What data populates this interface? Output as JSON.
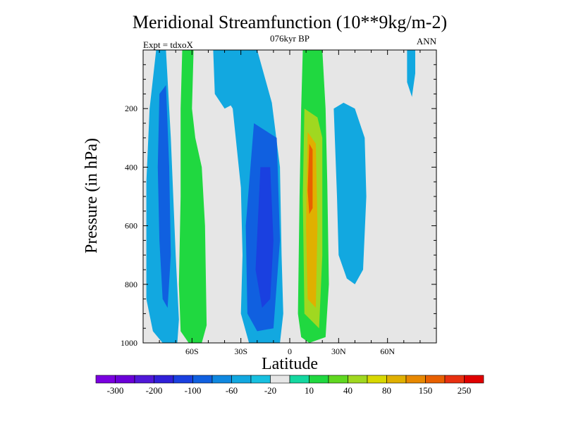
{
  "chart_data": {
    "type": "heatmap",
    "title": "Meridional Streamfunction (10**9kg/m-2)",
    "subtitle_center": "076kyr BP",
    "subtitle_left": "Expt = tdxoX",
    "subtitle_right": "ANN",
    "xlabel": "Latitude",
    "ylabel": "Pressure (in hPa)",
    "xlim": [
      -90,
      90
    ],
    "ylim": [
      0,
      1000
    ],
    "y_reversed": true,
    "x_ticks": [
      {
        "value": -60,
        "label": "60S"
      },
      {
        "value": -30,
        "label": "30S"
      },
      {
        "value": 0,
        "label": "0"
      },
      {
        "value": 30,
        "label": "30N"
      },
      {
        "value": 60,
        "label": "60N"
      }
    ],
    "y_ticks": [
      {
        "value": 200,
        "label": "200"
      },
      {
        "value": 400,
        "label": "400"
      },
      {
        "value": 600,
        "label": "600"
      },
      {
        "value": 800,
        "label": "800"
      },
      {
        "value": 1000,
        "label": "1000"
      }
    ],
    "background_color": "#e6e6e6",
    "colorbar": {
      "colors": [
        "#7a00e0",
        "#6a00d8",
        "#5018d8",
        "#3020d8",
        "#1a40e0",
        "#1060e0",
        "#0f88e0",
        "#12a8e0",
        "#18c0e0",
        "#e6e6e6",
        "#14d8a0",
        "#20d840",
        "#60d820",
        "#a0d820",
        "#d8d800",
        "#e0b000",
        "#e88800",
        "#e86000",
        "#e83010",
        "#e00000"
      ],
      "labels": [
        "-300",
        "-200",
        "-100",
        "-60",
        "-20",
        "10",
        "40",
        "80",
        "150",
        "250"
      ]
    },
    "contour_regions": [
      {
        "name": "sh-outer-cell-fill",
        "level": -20,
        "points": [
          [
            -88,
            450
          ],
          [
            -88,
            850
          ],
          [
            -84,
            960
          ],
          [
            -78,
            1000
          ],
          [
            -69,
            1000
          ],
          [
            -68,
            920
          ],
          [
            -70,
            700
          ],
          [
            -73,
            300
          ],
          [
            -76,
            0
          ],
          [
            -82,
            0
          ],
          [
            -86,
            200
          ]
        ]
      },
      {
        "name": "sh-outer-cell-core",
        "level": -60,
        "points": [
          [
            -80,
            150
          ],
          [
            -81,
            400
          ],
          [
            -80,
            650
          ],
          [
            -78,
            850
          ],
          [
            -75,
            880
          ],
          [
            -73,
            700
          ],
          [
            -74,
            400
          ],
          [
            -76,
            120
          ]
        ]
      },
      {
        "name": "sh-extratropical-cell",
        "level": 40,
        "points": [
          [
            -66,
            0
          ],
          [
            -67,
            200
          ],
          [
            -67,
            500
          ],
          [
            -68,
            800
          ],
          [
            -67,
            960
          ],
          [
            -62,
            1000
          ],
          [
            -54,
            1000
          ],
          [
            -51,
            940
          ],
          [
            -52,
            600
          ],
          [
            -54,
            400
          ],
          [
            -58,
            300
          ],
          [
            -60,
            200
          ],
          [
            -59,
            0
          ]
        ]
      },
      {
        "name": "sh-tropical-outer",
        "level": -20,
        "points": [
          [
            -44,
            0
          ],
          [
            -46,
            100
          ],
          [
            -35,
            200
          ],
          [
            -30,
            470
          ],
          [
            -29,
            700
          ],
          [
            -30,
            900
          ],
          [
            -25,
            1000
          ],
          [
            -6,
            1000
          ],
          [
            -4,
            900
          ],
          [
            -5,
            700
          ],
          [
            -6,
            400
          ],
          [
            -11,
            180
          ],
          [
            -20,
            0
          ]
        ]
      },
      {
        "name": "sh-tropical-mid",
        "level": -60,
        "points": [
          [
            -22,
            250
          ],
          [
            -27,
            600
          ],
          [
            -26,
            900
          ],
          [
            -20,
            960
          ],
          [
            -10,
            950
          ],
          [
            -6,
            650
          ],
          [
            -8,
            300
          ]
        ]
      },
      {
        "name": "sh-tropical-core",
        "level": -100,
        "points": [
          [
            -18,
            400
          ],
          [
            -21,
            750
          ],
          [
            -17,
            880
          ],
          [
            -12,
            850
          ],
          [
            -10,
            650
          ],
          [
            -12,
            400
          ]
        ]
      },
      {
        "name": "nh-tropical-outer",
        "level": 40,
        "points": [
          [
            8,
            0
          ],
          [
            7,
            200
          ],
          [
            6,
            500
          ],
          [
            5,
            900
          ],
          [
            7,
            980
          ],
          [
            12,
            1000
          ],
          [
            22,
            980
          ],
          [
            24,
            800
          ],
          [
            23,
            450
          ],
          [
            22,
            200
          ],
          [
            20,
            0
          ]
        ]
      },
      {
        "name": "nh-tropical-mid",
        "level": 80,
        "points": [
          [
            9,
            200
          ],
          [
            8,
            500
          ],
          [
            9,
            900
          ],
          [
            18,
            950
          ],
          [
            20,
            700
          ],
          [
            20,
            300
          ],
          [
            17,
            230
          ]
        ]
      },
      {
        "name": "nh-tropical-core",
        "level": 150,
        "points": [
          [
            11,
            280
          ],
          [
            10,
            600
          ],
          [
            11,
            850
          ],
          [
            16,
            880
          ],
          [
            17,
            600
          ],
          [
            16,
            320
          ]
        ]
      },
      {
        "name": "nh-tropical-peak",
        "level": 250,
        "points": [
          [
            12,
            320
          ],
          [
            11,
            480
          ],
          [
            12,
            560
          ],
          [
            14,
            540
          ],
          [
            14,
            340
          ]
        ]
      },
      {
        "name": "nh-subtropical-cell",
        "level": -20,
        "points": [
          [
            27,
            200
          ],
          [
            29,
            500
          ],
          [
            30,
            700
          ],
          [
            35,
            780
          ],
          [
            40,
            800
          ],
          [
            45,
            750
          ],
          [
            47,
            500
          ],
          [
            46,
            300
          ],
          [
            40,
            200
          ],
          [
            33,
            180
          ]
        ]
      },
      {
        "name": "sh-upper-cell",
        "level": -20,
        "points": [
          [
            -47,
            0
          ],
          [
            -46,
            150
          ],
          [
            -40,
            200
          ],
          [
            -33,
            180
          ],
          [
            -31,
            70
          ],
          [
            -32,
            0
          ]
        ]
      },
      {
        "name": "nh-polar-cell",
        "level": -20,
        "points": [
          [
            72,
            0
          ],
          [
            72,
            110
          ],
          [
            75,
            160
          ],
          [
            77,
            80
          ],
          [
            77,
            0
          ]
        ]
      }
    ]
  }
}
